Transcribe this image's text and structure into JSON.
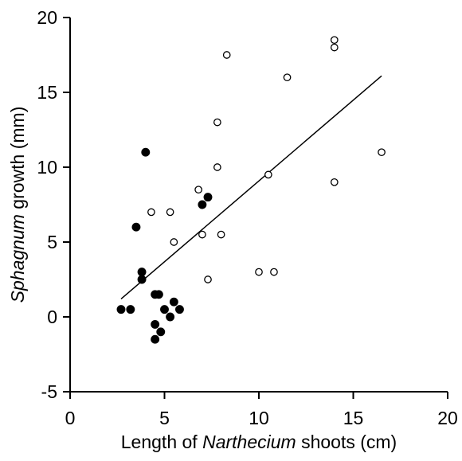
{
  "chart_data": {
    "type": "scatter",
    "xlabel": {
      "before": "Length of ",
      "italic": "Narthecium",
      "after": " shoots (cm)"
    },
    "ylabel": {
      "italic": "Sphagnum",
      "after": " growth (mm)"
    },
    "xlim": [
      0,
      20
    ],
    "ylim": [
      -5,
      20
    ],
    "x_ticks": [
      0,
      5,
      10,
      15,
      20
    ],
    "y_ticks": [
      -5,
      0,
      5,
      10,
      15,
      20
    ],
    "grid": false,
    "legend": "none",
    "series": [
      {
        "marker": "filled-circle",
        "points": [
          [
            2.7,
            0.5
          ],
          [
            3.2,
            0.5
          ],
          [
            3.5,
            6.0
          ],
          [
            3.8,
            3.0
          ],
          [
            3.8,
            2.5
          ],
          [
            4.0,
            11.0
          ],
          [
            4.5,
            1.5
          ],
          [
            4.5,
            -0.5
          ],
          [
            4.5,
            -1.5
          ],
          [
            4.7,
            1.5
          ],
          [
            4.8,
            -1.0
          ],
          [
            5.0,
            0.5
          ],
          [
            5.3,
            0.0
          ],
          [
            5.5,
            1.0
          ],
          [
            5.8,
            0.5
          ],
          [
            7.0,
            7.5
          ],
          [
            7.3,
            8.0
          ]
        ]
      },
      {
        "marker": "open-circle",
        "points": [
          [
            4.3,
            7.0
          ],
          [
            5.3,
            7.0
          ],
          [
            5.5,
            5.0
          ],
          [
            6.8,
            8.5
          ],
          [
            7.0,
            5.5
          ],
          [
            7.3,
            2.5
          ],
          [
            7.8,
            13.0
          ],
          [
            7.8,
            10.0
          ],
          [
            8.0,
            5.5
          ],
          [
            8.3,
            17.5
          ],
          [
            10.0,
            3.0
          ],
          [
            10.5,
            9.5
          ],
          [
            10.8,
            3.0
          ],
          [
            11.5,
            16.0
          ],
          [
            14.0,
            18.5
          ],
          [
            14.0,
            18.0
          ],
          [
            14.0,
            9.0
          ],
          [
            16.5,
            11.0
          ]
        ]
      }
    ],
    "regression_line": {
      "x": [
        2.7,
        16.5
      ],
      "y": [
        1.2,
        16.1
      ]
    },
    "colors": {
      "axis": "#000000",
      "marker": "#000000",
      "background": "#ffffff"
    }
  }
}
